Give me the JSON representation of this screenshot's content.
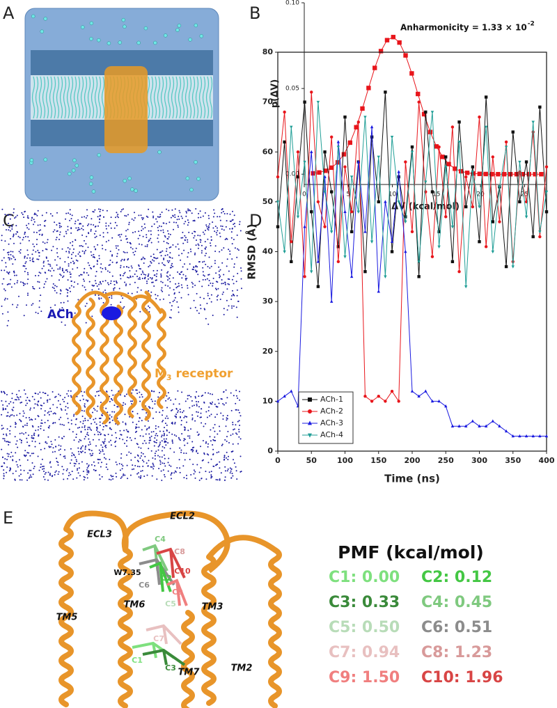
{
  "panel_labels": [
    "A",
    "B",
    "C",
    "D",
    "E"
  ],
  "chart_data": [
    {
      "type": "line",
      "x_label": "ΔV (kcal/mol)",
      "y_label": "p(ΔV)",
      "annotation": "Anharmonicity = 1.33 × 10",
      "annotation_exponent": "-2",
      "x": [
        1.0,
        1.7,
        2.4,
        3.1,
        3.8,
        4.5,
        5.2,
        5.9,
        6.6,
        7.3,
        8.0,
        8.7,
        9.4,
        10.1,
        10.8,
        11.5,
        12.2,
        12.9,
        13.6,
        14.3,
        15.0,
        15.7,
        16.4,
        17.1,
        17.8,
        18.5,
        19.2,
        19.9,
        20.6,
        21.3,
        22.0,
        22.7,
        23.4,
        24.1,
        24.8,
        25.5,
        26.2,
        26.9
      ],
      "series": [
        {
          "color": "#e8151b",
          "marker": "square",
          "values": [
            0.0005,
            0.001,
            0.002,
            0.0038,
            0.0069,
            0.0116,
            0.0184,
            0.0274,
            0.0383,
            0.0503,
            0.062,
            0.0718,
            0.0782,
            0.08,
            0.0768,
            0.0693,
            0.0588,
            0.0468,
            0.035,
            0.0246,
            0.0162,
            0.0101,
            0.0059,
            0.0032,
            0.0017,
            0.0008,
            0.0004,
            0.0002,
            0.0001,
            0,
            0,
            0,
            0,
            0,
            0,
            0,
            0,
            0
          ]
        }
      ],
      "xlim": [
        0,
        27.5
      ],
      "xticks": [
        0,
        5,
        10,
        15,
        20,
        25
      ],
      "ylim": [
        -0.006,
        0.1
      ],
      "yticks": [
        {
          "value": 0,
          "label": "0.00"
        },
        {
          "value": 0.05,
          "label": "0.05"
        },
        {
          "value": 0.1,
          "label": "0.10"
        }
      ],
      "frame": false
    },
    {
      "type": "line",
      "x_label": "Time (ns)",
      "y_label": "RMSD (Å)",
      "x": [
        0,
        10,
        20,
        30,
        40,
        50,
        60,
        70,
        80,
        90,
        100,
        110,
        120,
        130,
        140,
        150,
        160,
        170,
        180,
        190,
        200,
        210,
        220,
        230,
        240,
        250,
        260,
        270,
        280,
        290,
        300,
        310,
        320,
        330,
        340,
        350,
        360,
        370,
        380,
        390,
        400
      ],
      "series": [
        {
          "name": "ACh-1",
          "color": "#111111",
          "marker": "square",
          "values": [
            45,
            62,
            38,
            55,
            70,
            48,
            33,
            60,
            52,
            41,
            67,
            44,
            58,
            36,
            63,
            50,
            72,
            40,
            55,
            47,
            61,
            35,
            68,
            52,
            44,
            59,
            38,
            66,
            49,
            57,
            42,
            71,
            46,
            53,
            37,
            64,
            50,
            58,
            43,
            69,
            48
          ]
        },
        {
          "name": "ACh-2",
          "color": "#e8151b",
          "marker": "circle",
          "values": [
            55,
            68,
            42,
            60,
            35,
            72,
            50,
            45,
            63,
            38,
            57,
            48,
            66,
            11,
            10,
            11,
            10,
            12,
            10,
            58,
            44,
            70,
            52,
            39,
            61,
            47,
            65,
            36,
            55,
            49,
            67,
            41,
            59,
            46,
            62,
            38,
            56,
            50,
            64,
            43,
            57
          ]
        },
        {
          "name": "ACh-3",
          "color": "#1a1ae0",
          "marker": "triangle-up",
          "values": [
            10,
            11,
            12,
            9,
            45,
            60,
            38,
            55,
            30,
            62,
            48,
            35,
            58,
            44,
            65,
            32,
            50,
            42,
            56,
            40,
            12,
            11,
            12,
            10,
            10,
            9,
            5,
            5,
            5,
            6,
            5,
            5,
            6,
            5,
            4,
            3,
            3,
            3,
            3,
            3,
            3
          ]
        },
        {
          "name": "ACh-4",
          "color": "#1f9e96",
          "marker": "triangle-down",
          "values": [
            50,
            40,
            65,
            47,
            58,
            36,
            70,
            52,
            44,
            61,
            39,
            55,
            48,
            67,
            42,
            59,
            35,
            63,
            50,
            46,
            60,
            38,
            54,
            68,
            41,
            57,
            45,
            62,
            33,
            56,
            49,
            65,
            40,
            53,
            61,
            37,
            58,
            47,
            66,
            44,
            52
          ]
        }
      ],
      "xlim": [
        0,
        400
      ],
      "xticks": [
        0,
        50,
        100,
        150,
        200,
        250,
        300,
        350,
        400
      ],
      "ylim": [
        0,
        80
      ],
      "yticks": [
        0,
        10,
        20,
        30,
        40,
        50,
        60,
        70,
        80
      ],
      "frame": true,
      "legend": "lower left"
    }
  ],
  "panel_c": {
    "ligand_label": "ACh",
    "receptor_label": {
      "text": "M",
      "subscript": "3",
      "suffix": " receptor"
    }
  },
  "panel_e": {
    "labels": [
      {
        "text": "ECL2",
        "color": "#111111"
      },
      {
        "text": "ECL3",
        "color": "#111111"
      },
      {
        "text": "TM5",
        "color": "#111111"
      },
      {
        "text": "TM6",
        "color": "#111111"
      },
      {
        "text": "TM3",
        "color": "#111111"
      },
      {
        "text": "TM7",
        "color": "#111111"
      },
      {
        "text": "TM2",
        "color": "#111111"
      },
      {
        "text": "W7.35",
        "color": "#111111"
      },
      {
        "text": "C4",
        "color": "#7fc97f"
      },
      {
        "text": "C8",
        "color": "#d89a9a"
      },
      {
        "text": "C10",
        "color": "#d84545"
      },
      {
        "text": "C2",
        "color": "#44c744"
      },
      {
        "text": "C6",
        "color": "#8c8c8c"
      },
      {
        "text": "C9",
        "color": "#f07f7f"
      },
      {
        "text": "C5",
        "color": "#b8dcb8"
      },
      {
        "text": "C7",
        "color": "#e8c0c0"
      },
      {
        "text": "C1",
        "color": "#7ee07e"
      },
      {
        "text": "C3",
        "color": "#3a8a3a"
      }
    ],
    "pmf": {
      "title": "PMF (kcal/mol)",
      "entries": [
        {
          "text": "C1: 0.00",
          "color": "#7ee07e"
        },
        {
          "text": "C2: 0.12",
          "color": "#44c744"
        },
        {
          "text": "C3: 0.33",
          "color": "#3a8a3a"
        },
        {
          "text": "C4: 0.45",
          "color": "#7fc97f"
        },
        {
          "text": "C5: 0.50",
          "color": "#b8dcb8"
        },
        {
          "text": "C6: 0.51",
          "color": "#8c8c8c"
        },
        {
          "text": "C7: 0.94",
          "color": "#e8c0c0"
        },
        {
          "text": "C8: 1.23",
          "color": "#d89a9a"
        },
        {
          "text": "C9: 1.50",
          "color": "#f07f7f"
        },
        {
          "text": "C10: 1.96",
          "color": "#d84545"
        }
      ]
    }
  }
}
